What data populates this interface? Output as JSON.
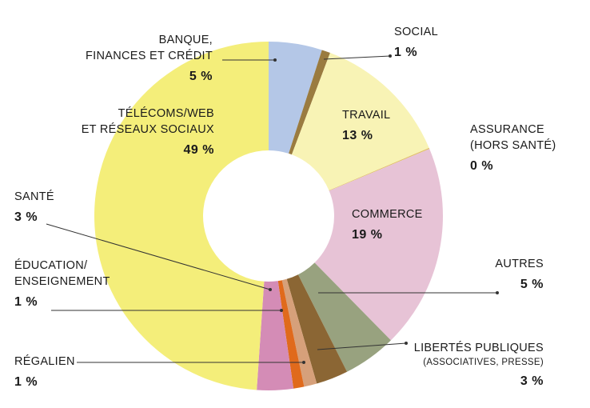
{
  "chart_data": {
    "type": "pie",
    "donut": true,
    "colors": {
      "banque": "#b4c7e7",
      "social": "#9a7b40",
      "travail": "#f8f3b5",
      "assurance": "#e1c06a",
      "commerce": "#e7c3d6",
      "autres": "#98a27f",
      "libertes": "#8b6634",
      "regalien": "#d6a07a",
      "education": "#e06a1c",
      "sante": "#d48cb6",
      "telecoms": "#f4ee7a",
      "leader": "#333333"
    },
    "slices": [
      {
        "key": "banque",
        "label_lines": [
          "BANQUE,",
          "FINANCES ET CRÉDIT"
        ],
        "sub": "",
        "pct_label": "5 %",
        "value": 5
      },
      {
        "key": "social",
        "label_lines": [
          "SOCIAL"
        ],
        "sub": "",
        "pct_label": "1 %",
        "value": 0.8
      },
      {
        "key": "travail",
        "label_lines": [
          "TRAVAIL"
        ],
        "sub": "",
        "pct_label": "13 %",
        "value": 13
      },
      {
        "key": "assurance",
        "label_lines": [
          "ASSURANCE",
          "(HORS SANTÉ)"
        ],
        "sub": "",
        "pct_label": "0 %",
        "value": 0.1
      },
      {
        "key": "commerce",
        "label_lines": [
          "COMMERCE"
        ],
        "sub": "",
        "pct_label": "19 %",
        "value": 19.1
      },
      {
        "key": "autres",
        "label_lines": [
          "AUTRES"
        ],
        "sub": "",
        "pct_label": "5 %",
        "value": 5
      },
      {
        "key": "libertes",
        "label_lines": [
          "LIBERTÉS PUBLIQUES"
        ],
        "sub": "(ASSOCIATIVES, PRESSE)",
        "pct_label": "3 %",
        "value": 3
      },
      {
        "key": "regalien",
        "label_lines": [
          "RÉGALIEN"
        ],
        "sub": "",
        "pct_label": "1 %",
        "value": 1.2
      },
      {
        "key": "education",
        "label_lines": [
          "ÉDUCATION/",
          "ENSEIGNEMENT"
        ],
        "sub": "",
        "pct_label": "1 %",
        "value": 1
      },
      {
        "key": "sante",
        "label_lines": [
          "SANTÉ"
        ],
        "sub": "",
        "pct_label": "3 %",
        "value": 3.4
      },
      {
        "key": "telecoms",
        "label_lines": [
          "TÉLÉCOMS/WEB",
          "ET RÉSEAUX SOCIAUX"
        ],
        "sub": "",
        "pct_label": "49 %",
        "value": 49.4
      }
    ]
  }
}
